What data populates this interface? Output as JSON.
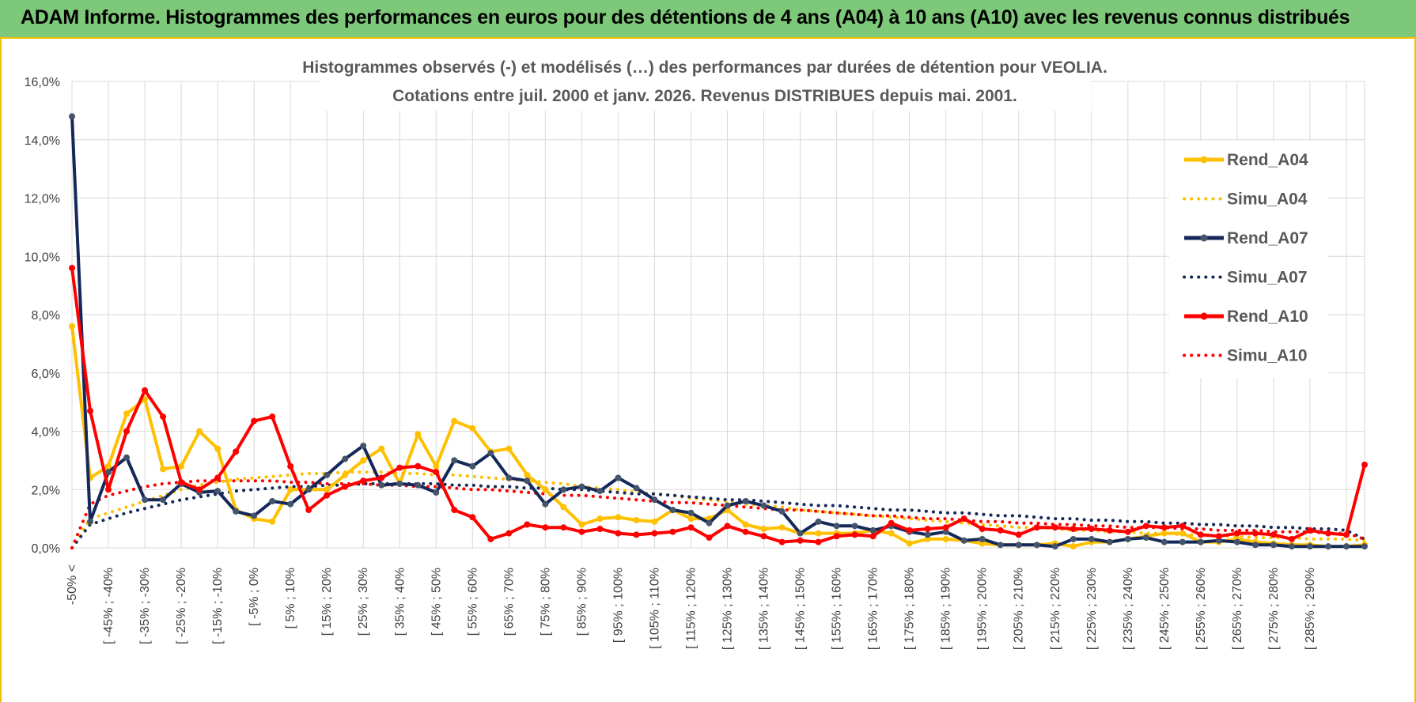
{
  "header": {
    "title": "ADAM Informe. Histogrammes des performances en euros pour des détentions de 4 ans (A04) à 10 ans (A10) avec les revenus connus distribués"
  },
  "chart_data": {
    "type": "line",
    "title": "Histogrammes observés (-) et modélisés (…) des performances par durées de détention pour VEOLIA.",
    "subtitle": "Cotations entre juil. 2000 et janv. 2026. Revenus DISTRIBUES depuis mai. 2001.",
    "xlabel": "",
    "ylabel": "",
    "ylim": [
      0,
      16
    ],
    "y_ticks": [
      "0,0%",
      "2,0%",
      "4,0%",
      "6,0%",
      "8,0%",
      "10,0%",
      "12,0%",
      "14,0%",
      "16,0%"
    ],
    "grid": true,
    "legend_position": "right",
    "x_tick_labels": [
      "-50% <",
      "[ -45% ; -40%",
      "[ -35% ; -30%",
      "[ -25% ; -20%",
      "[ -15% ; -10%",
      "[ -5% ; 0%",
      "[ 5% ; 10%",
      "[ 15% ; 20%",
      "[ 25% ; 30%",
      "[ 35% ; 40%",
      "[ 45% ; 50%",
      "[ 55% ; 60%",
      "[ 65% ; 70%",
      "[ 75% ; 80%",
      "[ 85% ; 90%",
      "[ 95% ; 100%",
      "[ 105% ; 110%",
      "[ 115% ; 120%",
      "[ 125% ; 130%",
      "[ 135% ; 140%",
      "[ 145% ; 150%",
      "[ 155% ; 160%",
      "[ 165% ; 170%",
      "[ 175% ; 180%",
      "[ 185% ; 190%",
      "[ 195% ; 200%",
      "[ 205% ; 210%",
      "[ 215% ; 220%",
      "[ 225% ; 230%",
      "[ 235% ; 240%",
      "[ 245% ; 250%",
      "[ 255% ; 260%",
      "[ 265% ; 270%",
      "[ 275% ; 280%",
      "[ 285% ; 290%"
    ],
    "n_points": 72,
    "series": [
      {
        "name": "Rend_A04",
        "style": "solid",
        "color": "#ffc000",
        "values": [
          7.6,
          2.4,
          2.8,
          4.6,
          5.1,
          2.7,
          2.8,
          4.0,
          3.4,
          1.3,
          1.0,
          0.9,
          2.0,
          2.0,
          2.0,
          2.5,
          3.0,
          3.4,
          2.2,
          3.9,
          2.8,
          4.35,
          4.1,
          3.3,
          3.4,
          2.5,
          2.0,
          1.4,
          0.8,
          1.0,
          1.05,
          0.95,
          0.9,
          1.3,
          1.0,
          1.0,
          1.3,
          0.8,
          0.65,
          0.7,
          0.5,
          0.5,
          0.5,
          0.5,
          0.6,
          0.5,
          0.15,
          0.3,
          0.3,
          0.25,
          0.15,
          0.1,
          0.1,
          0.1,
          0.15,
          0.05,
          0.2,
          0.2,
          0.3,
          0.4,
          0.5,
          0.5,
          0.2,
          0.2,
          0.3,
          0.2,
          0.15,
          0.1,
          0.1,
          0.05,
          0.05,
          0.1
        ]
      },
      {
        "name": "Simu_A04",
        "style": "dotted",
        "color": "#ffc000",
        "values": [
          0.0,
          1.0,
          1.2,
          1.4,
          1.6,
          1.8,
          2.0,
          2.15,
          2.25,
          2.35,
          2.4,
          2.45,
          2.5,
          2.55,
          2.55,
          2.6,
          2.6,
          2.6,
          2.55,
          2.55,
          2.5,
          2.5,
          2.45,
          2.4,
          2.35,
          2.3,
          2.25,
          2.2,
          2.1,
          2.05,
          2.0,
          1.9,
          1.85,
          1.8,
          1.7,
          1.65,
          1.6,
          1.5,
          1.45,
          1.4,
          1.3,
          1.25,
          1.2,
          1.15,
          1.1,
          1.05,
          1.0,
          0.95,
          0.9,
          0.85,
          0.8,
          0.75,
          0.7,
          0.7,
          0.65,
          0.6,
          0.6,
          0.55,
          0.55,
          0.5,
          0.5,
          0.45,
          0.45,
          0.4,
          0.4,
          0.35,
          0.35,
          0.35,
          0.3,
          0.3,
          0.3,
          0.25
        ]
      },
      {
        "name": "Rend_A07",
        "style": "solid",
        "color": "#14285a",
        "values": [
          14.8,
          0.9,
          2.6,
          3.1,
          1.65,
          1.65,
          2.2,
          1.9,
          1.95,
          1.25,
          1.1,
          1.6,
          1.5,
          2.0,
          2.5,
          3.05,
          3.5,
          2.15,
          2.2,
          2.15,
          1.9,
          3.0,
          2.8,
          3.25,
          2.4,
          2.3,
          1.5,
          2.0,
          2.1,
          1.95,
          2.4,
          2.05,
          1.65,
          1.3,
          1.2,
          0.85,
          1.45,
          1.6,
          1.45,
          1.25,
          0.5,
          0.9,
          0.75,
          0.75,
          0.6,
          0.75,
          0.55,
          0.45,
          0.55,
          0.25,
          0.3,
          0.1,
          0.1,
          0.1,
          0.05,
          0.3,
          0.3,
          0.2,
          0.3,
          0.35,
          0.2,
          0.2,
          0.2,
          0.25,
          0.2,
          0.1,
          0.1,
          0.05,
          0.05,
          0.05,
          0.05,
          0.05
        ]
      },
      {
        "name": "Simu_A07",
        "style": "dotted",
        "color": "#14285a",
        "values": [
          0.0,
          0.8,
          1.0,
          1.2,
          1.35,
          1.5,
          1.65,
          1.75,
          1.85,
          1.95,
          2.0,
          2.05,
          2.1,
          2.1,
          2.15,
          2.15,
          2.2,
          2.2,
          2.2,
          2.2,
          2.2,
          2.15,
          2.15,
          2.1,
          2.1,
          2.05,
          2.05,
          2.0,
          2.0,
          1.95,
          1.9,
          1.85,
          1.85,
          1.8,
          1.75,
          1.7,
          1.65,
          1.65,
          1.6,
          1.55,
          1.5,
          1.45,
          1.45,
          1.4,
          1.35,
          1.3,
          1.3,
          1.25,
          1.2,
          1.2,
          1.15,
          1.1,
          1.1,
          1.05,
          1.0,
          1.0,
          0.95,
          0.95,
          0.9,
          0.9,
          0.85,
          0.85,
          0.8,
          0.8,
          0.75,
          0.75,
          0.7,
          0.7,
          0.65,
          0.65,
          0.6,
          0.3
        ]
      },
      {
        "name": "Rend_A10",
        "style": "solid",
        "color": "#ff0000",
        "values": [
          9.6,
          4.7,
          2.0,
          4.0,
          5.4,
          4.5,
          2.25,
          2.0,
          2.4,
          3.3,
          4.35,
          4.5,
          2.8,
          1.3,
          1.8,
          2.1,
          2.3,
          2.4,
          2.75,
          2.8,
          2.6,
          1.3,
          1.05,
          0.3,
          0.5,
          0.8,
          0.7,
          0.7,
          0.55,
          0.65,
          0.5,
          0.45,
          0.5,
          0.55,
          0.7,
          0.35,
          0.75,
          0.55,
          0.4,
          0.2,
          0.25,
          0.2,
          0.4,
          0.45,
          0.4,
          0.85,
          0.6,
          0.65,
          0.7,
          1.0,
          0.65,
          0.6,
          0.45,
          0.7,
          0.7,
          0.65,
          0.65,
          0.6,
          0.55,
          0.75,
          0.7,
          0.75,
          0.45,
          0.4,
          0.5,
          0.5,
          0.45,
          0.3,
          0.6,
          0.5,
          0.45,
          2.85
        ]
      },
      {
        "name": "Simu_A10",
        "style": "dotted",
        "color": "#ff0000",
        "values": [
          0.0,
          1.5,
          1.8,
          1.95,
          2.1,
          2.2,
          2.25,
          2.3,
          2.3,
          2.3,
          2.3,
          2.3,
          2.25,
          2.25,
          2.2,
          2.2,
          2.2,
          2.15,
          2.15,
          2.1,
          2.1,
          2.05,
          2.0,
          2.0,
          1.95,
          1.9,
          1.85,
          1.8,
          1.8,
          1.75,
          1.7,
          1.65,
          1.6,
          1.55,
          1.55,
          1.5,
          1.45,
          1.4,
          1.35,
          1.3,
          1.3,
          1.25,
          1.2,
          1.15,
          1.1,
          1.1,
          1.05,
          1.0,
          1.0,
          0.95,
          0.9,
          0.9,
          0.85,
          0.85,
          0.8,
          0.8,
          0.75,
          0.75,
          0.7,
          0.7,
          0.7,
          0.65,
          0.65,
          0.6,
          0.6,
          0.6,
          0.55,
          0.55,
          0.55,
          0.5,
          0.5,
          0.3
        ]
      }
    ]
  }
}
